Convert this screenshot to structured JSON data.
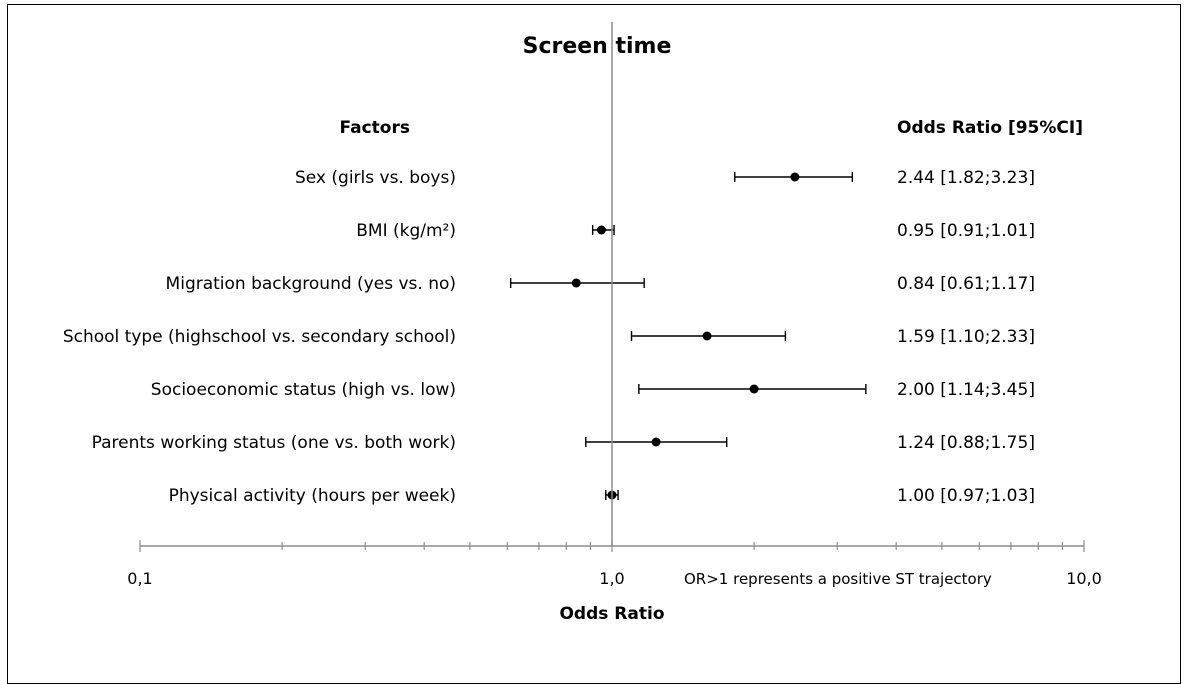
{
  "chart_data": {
    "type": "forest",
    "title": "Screen time",
    "xlabel": "Odds Ratio",
    "x_scale": "log",
    "xlim": [
      0.1,
      10.0
    ],
    "x_tick_labels": [
      "0,1",
      "1,0",
      "10,0"
    ],
    "factors_header": "Factors",
    "or_header": "Odds Ratio [95%CI]",
    "annotation": "OR>1 represents a positive ST trajectory",
    "reference_line": 1.0,
    "rows": [
      {
        "factor": "Sex (girls vs. boys)",
        "or": 2.44,
        "lo": 1.82,
        "hi": 3.23,
        "text": "2.44 [1.82;3.23]"
      },
      {
        "factor": "BMI (kg/m²)",
        "or": 0.95,
        "lo": 0.91,
        "hi": 1.01,
        "text": "0.95 [0.91;1.01]"
      },
      {
        "factor": "Migration background (yes vs. no)",
        "or": 0.84,
        "lo": 0.61,
        "hi": 1.17,
        "text": "0.84 [0.61;1.17]"
      },
      {
        "factor": "School type (highschool vs. secondary school)",
        "or": 1.59,
        "lo": 1.1,
        "hi": 2.33,
        "text": "1.59 [1.10;2.33]"
      },
      {
        "factor": "Socioeconomic status (high vs. low)",
        "or": 2.0,
        "lo": 1.14,
        "hi": 3.45,
        "text": "2.00 [1.14;3.45]"
      },
      {
        "factor": "Parents working status (one vs. both work)",
        "or": 1.24,
        "lo": 0.88,
        "hi": 1.75,
        "text": "1.24 [0.88;1.75]"
      },
      {
        "factor": "Physical activity (hours per week)",
        "or": 1.0,
        "lo": 0.97,
        "hi": 1.03,
        "text": "1.00 [0.97;1.03]"
      }
    ]
  }
}
